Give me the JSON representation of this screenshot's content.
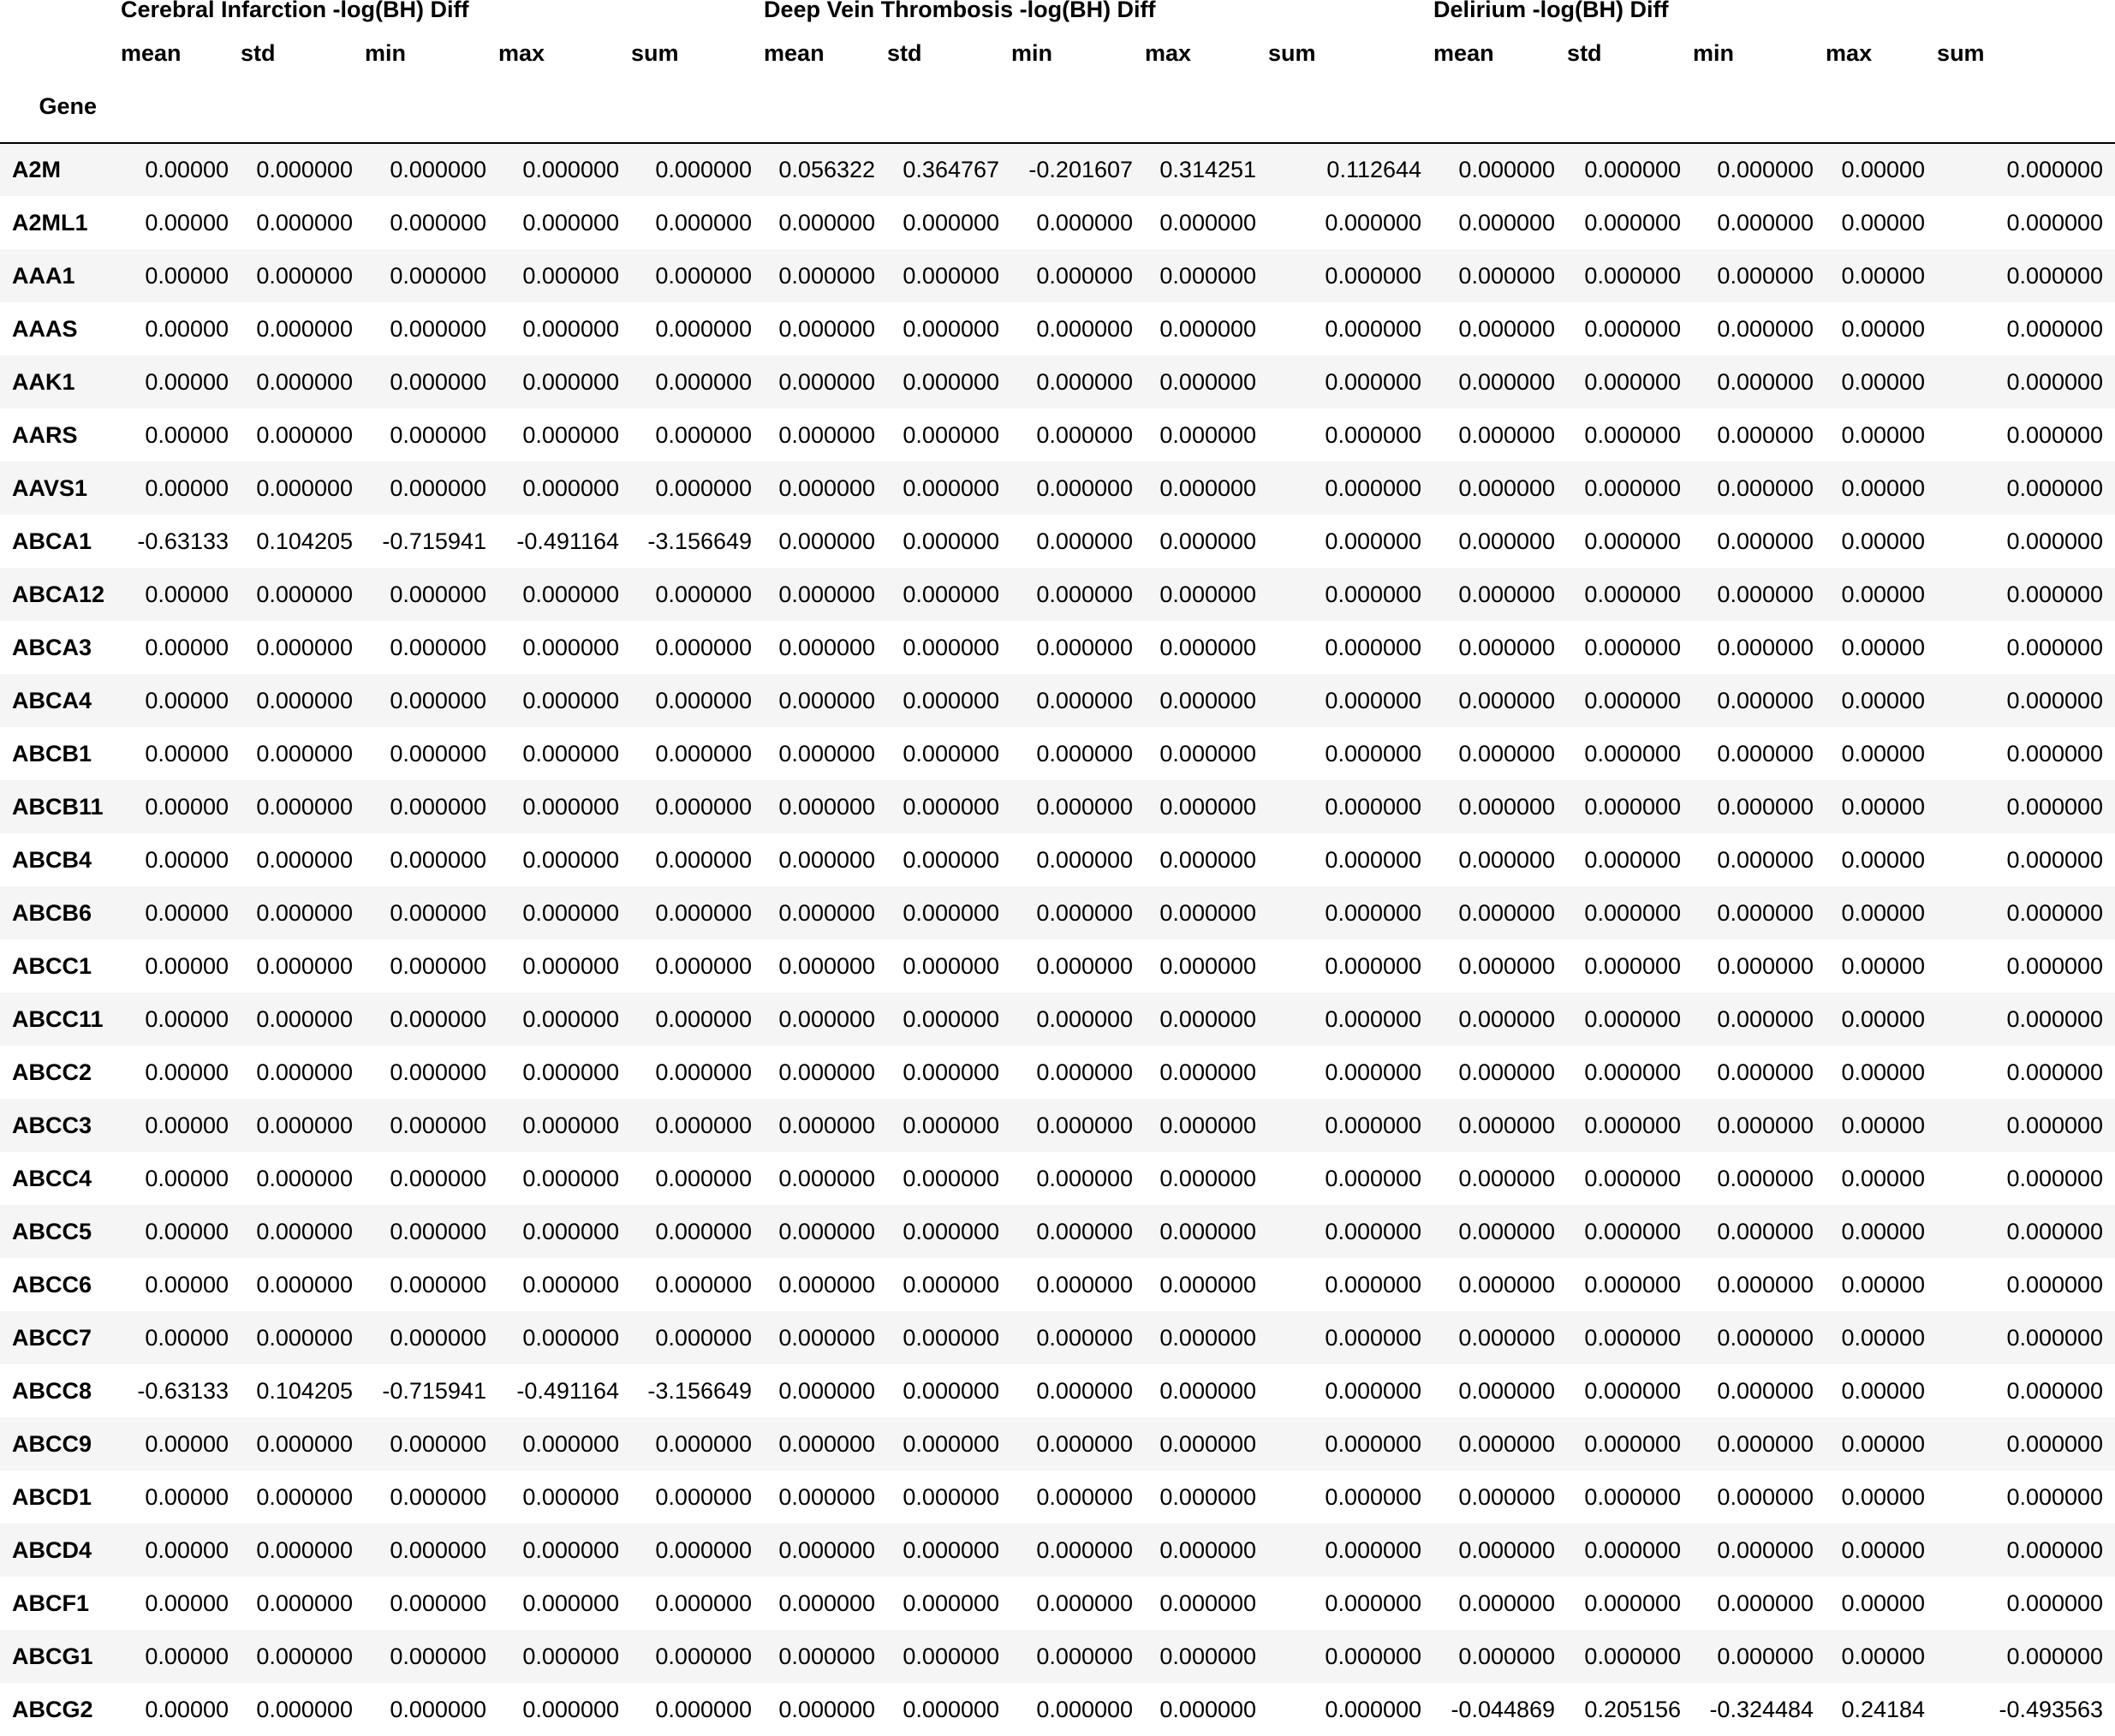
{
  "table": {
    "index_name": "Gene",
    "groups": [
      {
        "label": "Cerebral Infarction -log(BH) Diff"
      },
      {
        "label": "Deep Vein Thrombosis -log(BH) Diff"
      },
      {
        "label": "Delirium -log(BH) Diff"
      }
    ],
    "stat_labels": [
      "mean",
      "std",
      "min",
      "max",
      "sum",
      "mean",
      "std",
      "min",
      "max",
      "sum",
      "mean",
      "std",
      "min",
      "max",
      "sum"
    ],
    "rows": [
      {
        "gene": "A2M",
        "values": [
          "0.00000",
          "0.000000",
          "0.000000",
          "0.000000",
          "0.000000",
          "0.056322",
          "0.364767",
          "-0.201607",
          "0.314251",
          "0.112644",
          "0.000000",
          "0.000000",
          "0.000000",
          "0.00000",
          "0.000000"
        ]
      },
      {
        "gene": "A2ML1",
        "values": [
          "0.00000",
          "0.000000",
          "0.000000",
          "0.000000",
          "0.000000",
          "0.000000",
          "0.000000",
          "0.000000",
          "0.000000",
          "0.000000",
          "0.000000",
          "0.000000",
          "0.000000",
          "0.00000",
          "0.000000"
        ]
      },
      {
        "gene": "AAA1",
        "values": [
          "0.00000",
          "0.000000",
          "0.000000",
          "0.000000",
          "0.000000",
          "0.000000",
          "0.000000",
          "0.000000",
          "0.000000",
          "0.000000",
          "0.000000",
          "0.000000",
          "0.000000",
          "0.00000",
          "0.000000"
        ]
      },
      {
        "gene": "AAAS",
        "values": [
          "0.00000",
          "0.000000",
          "0.000000",
          "0.000000",
          "0.000000",
          "0.000000",
          "0.000000",
          "0.000000",
          "0.000000",
          "0.000000",
          "0.000000",
          "0.000000",
          "0.000000",
          "0.00000",
          "0.000000"
        ]
      },
      {
        "gene": "AAK1",
        "values": [
          "0.00000",
          "0.000000",
          "0.000000",
          "0.000000",
          "0.000000",
          "0.000000",
          "0.000000",
          "0.000000",
          "0.000000",
          "0.000000",
          "0.000000",
          "0.000000",
          "0.000000",
          "0.00000",
          "0.000000"
        ]
      },
      {
        "gene": "AARS",
        "values": [
          "0.00000",
          "0.000000",
          "0.000000",
          "0.000000",
          "0.000000",
          "0.000000",
          "0.000000",
          "0.000000",
          "0.000000",
          "0.000000",
          "0.000000",
          "0.000000",
          "0.000000",
          "0.00000",
          "0.000000"
        ]
      },
      {
        "gene": "AAVS1",
        "values": [
          "0.00000",
          "0.000000",
          "0.000000",
          "0.000000",
          "0.000000",
          "0.000000",
          "0.000000",
          "0.000000",
          "0.000000",
          "0.000000",
          "0.000000",
          "0.000000",
          "0.000000",
          "0.00000",
          "0.000000"
        ]
      },
      {
        "gene": "ABCA1",
        "values": [
          "-0.63133",
          "0.104205",
          "-0.715941",
          "-0.491164",
          "-3.156649",
          "0.000000",
          "0.000000",
          "0.000000",
          "0.000000",
          "0.000000",
          "0.000000",
          "0.000000",
          "0.000000",
          "0.00000",
          "0.000000"
        ]
      },
      {
        "gene": "ABCA12",
        "values": [
          "0.00000",
          "0.000000",
          "0.000000",
          "0.000000",
          "0.000000",
          "0.000000",
          "0.000000",
          "0.000000",
          "0.000000",
          "0.000000",
          "0.000000",
          "0.000000",
          "0.000000",
          "0.00000",
          "0.000000"
        ]
      },
      {
        "gene": "ABCA3",
        "values": [
          "0.00000",
          "0.000000",
          "0.000000",
          "0.000000",
          "0.000000",
          "0.000000",
          "0.000000",
          "0.000000",
          "0.000000",
          "0.000000",
          "0.000000",
          "0.000000",
          "0.000000",
          "0.00000",
          "0.000000"
        ]
      },
      {
        "gene": "ABCA4",
        "values": [
          "0.00000",
          "0.000000",
          "0.000000",
          "0.000000",
          "0.000000",
          "0.000000",
          "0.000000",
          "0.000000",
          "0.000000",
          "0.000000",
          "0.000000",
          "0.000000",
          "0.000000",
          "0.00000",
          "0.000000"
        ]
      },
      {
        "gene": "ABCB1",
        "values": [
          "0.00000",
          "0.000000",
          "0.000000",
          "0.000000",
          "0.000000",
          "0.000000",
          "0.000000",
          "0.000000",
          "0.000000",
          "0.000000",
          "0.000000",
          "0.000000",
          "0.000000",
          "0.00000",
          "0.000000"
        ]
      },
      {
        "gene": "ABCB11",
        "values": [
          "0.00000",
          "0.000000",
          "0.000000",
          "0.000000",
          "0.000000",
          "0.000000",
          "0.000000",
          "0.000000",
          "0.000000",
          "0.000000",
          "0.000000",
          "0.000000",
          "0.000000",
          "0.00000",
          "0.000000"
        ]
      },
      {
        "gene": "ABCB4",
        "values": [
          "0.00000",
          "0.000000",
          "0.000000",
          "0.000000",
          "0.000000",
          "0.000000",
          "0.000000",
          "0.000000",
          "0.000000",
          "0.000000",
          "0.000000",
          "0.000000",
          "0.000000",
          "0.00000",
          "0.000000"
        ]
      },
      {
        "gene": "ABCB6",
        "values": [
          "0.00000",
          "0.000000",
          "0.000000",
          "0.000000",
          "0.000000",
          "0.000000",
          "0.000000",
          "0.000000",
          "0.000000",
          "0.000000",
          "0.000000",
          "0.000000",
          "0.000000",
          "0.00000",
          "0.000000"
        ]
      },
      {
        "gene": "ABCC1",
        "values": [
          "0.00000",
          "0.000000",
          "0.000000",
          "0.000000",
          "0.000000",
          "0.000000",
          "0.000000",
          "0.000000",
          "0.000000",
          "0.000000",
          "0.000000",
          "0.000000",
          "0.000000",
          "0.00000",
          "0.000000"
        ]
      },
      {
        "gene": "ABCC11",
        "values": [
          "0.00000",
          "0.000000",
          "0.000000",
          "0.000000",
          "0.000000",
          "0.000000",
          "0.000000",
          "0.000000",
          "0.000000",
          "0.000000",
          "0.000000",
          "0.000000",
          "0.000000",
          "0.00000",
          "0.000000"
        ]
      },
      {
        "gene": "ABCC2",
        "values": [
          "0.00000",
          "0.000000",
          "0.000000",
          "0.000000",
          "0.000000",
          "0.000000",
          "0.000000",
          "0.000000",
          "0.000000",
          "0.000000",
          "0.000000",
          "0.000000",
          "0.000000",
          "0.00000",
          "0.000000"
        ]
      },
      {
        "gene": "ABCC3",
        "values": [
          "0.00000",
          "0.000000",
          "0.000000",
          "0.000000",
          "0.000000",
          "0.000000",
          "0.000000",
          "0.000000",
          "0.000000",
          "0.000000",
          "0.000000",
          "0.000000",
          "0.000000",
          "0.00000",
          "0.000000"
        ]
      },
      {
        "gene": "ABCC4",
        "values": [
          "0.00000",
          "0.000000",
          "0.000000",
          "0.000000",
          "0.000000",
          "0.000000",
          "0.000000",
          "0.000000",
          "0.000000",
          "0.000000",
          "0.000000",
          "0.000000",
          "0.000000",
          "0.00000",
          "0.000000"
        ]
      },
      {
        "gene": "ABCC5",
        "values": [
          "0.00000",
          "0.000000",
          "0.000000",
          "0.000000",
          "0.000000",
          "0.000000",
          "0.000000",
          "0.000000",
          "0.000000",
          "0.000000",
          "0.000000",
          "0.000000",
          "0.000000",
          "0.00000",
          "0.000000"
        ]
      },
      {
        "gene": "ABCC6",
        "values": [
          "0.00000",
          "0.000000",
          "0.000000",
          "0.000000",
          "0.000000",
          "0.000000",
          "0.000000",
          "0.000000",
          "0.000000",
          "0.000000",
          "0.000000",
          "0.000000",
          "0.000000",
          "0.00000",
          "0.000000"
        ]
      },
      {
        "gene": "ABCC7",
        "values": [
          "0.00000",
          "0.000000",
          "0.000000",
          "0.000000",
          "0.000000",
          "0.000000",
          "0.000000",
          "0.000000",
          "0.000000",
          "0.000000",
          "0.000000",
          "0.000000",
          "0.000000",
          "0.00000",
          "0.000000"
        ]
      },
      {
        "gene": "ABCC8",
        "values": [
          "-0.63133",
          "0.104205",
          "-0.715941",
          "-0.491164",
          "-3.156649",
          "0.000000",
          "0.000000",
          "0.000000",
          "0.000000",
          "0.000000",
          "0.000000",
          "0.000000",
          "0.000000",
          "0.00000",
          "0.000000"
        ]
      },
      {
        "gene": "ABCC9",
        "values": [
          "0.00000",
          "0.000000",
          "0.000000",
          "0.000000",
          "0.000000",
          "0.000000",
          "0.000000",
          "0.000000",
          "0.000000",
          "0.000000",
          "0.000000",
          "0.000000",
          "0.000000",
          "0.00000",
          "0.000000"
        ]
      },
      {
        "gene": "ABCD1",
        "values": [
          "0.00000",
          "0.000000",
          "0.000000",
          "0.000000",
          "0.000000",
          "0.000000",
          "0.000000",
          "0.000000",
          "0.000000",
          "0.000000",
          "0.000000",
          "0.000000",
          "0.000000",
          "0.00000",
          "0.000000"
        ]
      },
      {
        "gene": "ABCD4",
        "values": [
          "0.00000",
          "0.000000",
          "0.000000",
          "0.000000",
          "0.000000",
          "0.000000",
          "0.000000",
          "0.000000",
          "0.000000",
          "0.000000",
          "0.000000",
          "0.000000",
          "0.000000",
          "0.00000",
          "0.000000"
        ]
      },
      {
        "gene": "ABCF1",
        "values": [
          "0.00000",
          "0.000000",
          "0.000000",
          "0.000000",
          "0.000000",
          "0.000000",
          "0.000000",
          "0.000000",
          "0.000000",
          "0.000000",
          "0.000000",
          "0.000000",
          "0.000000",
          "0.00000",
          "0.000000"
        ]
      },
      {
        "gene": "ABCG1",
        "values": [
          "0.00000",
          "0.000000",
          "0.000000",
          "0.000000",
          "0.000000",
          "0.000000",
          "0.000000",
          "0.000000",
          "0.000000",
          "0.000000",
          "0.000000",
          "0.000000",
          "0.000000",
          "0.00000",
          "0.000000"
        ]
      },
      {
        "gene": "ABCG2",
        "values": [
          "0.00000",
          "0.000000",
          "0.000000",
          "0.000000",
          "0.000000",
          "0.000000",
          "0.000000",
          "0.000000",
          "0.000000",
          "0.000000",
          "-0.044869",
          "0.205156",
          "-0.324484",
          "0.24184",
          "-0.493563"
        ]
      }
    ]
  }
}
